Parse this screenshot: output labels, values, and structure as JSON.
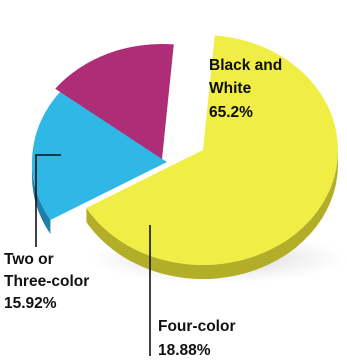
{
  "chart_data": {
    "type": "pie",
    "style": "3d-exploded",
    "slices": [
      {
        "label_lines": [
          "Black and",
          "White"
        ],
        "value": 65.2,
        "value_text": "65.2%",
        "color": "#f0ee45",
        "side_color": "#b2ae28"
      },
      {
        "label_lines": [
          "Four-color"
        ],
        "value": 18.88,
        "value_text": "18.88%",
        "color": "#2fb7e6",
        "side_color": "#1f7fa8"
      },
      {
        "label_lines": [
          "Two or",
          "Three-color"
        ],
        "value": 15.92,
        "value_text": "15.92%",
        "color": "#ad2d77",
        "side_color": "#721d4f"
      }
    ]
  }
}
